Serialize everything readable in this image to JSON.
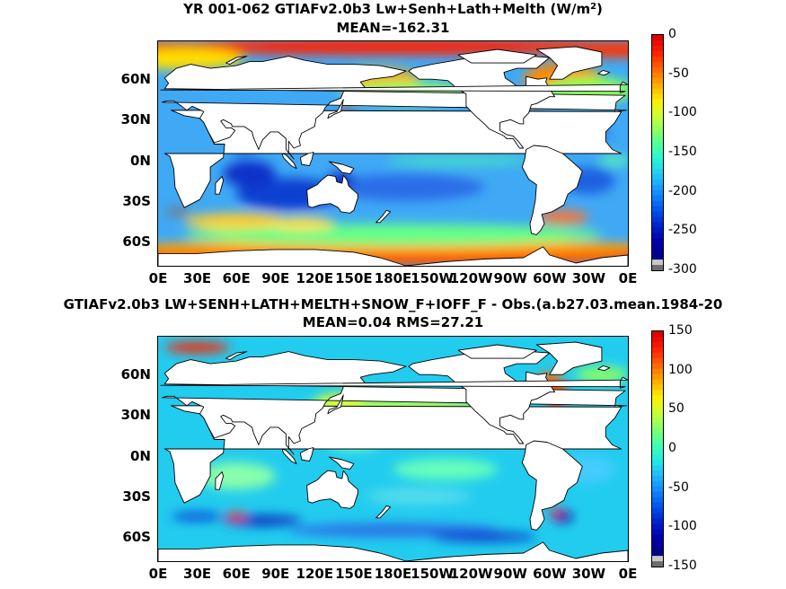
{
  "map1": {
    "title_prefix": "YR 001-062 GTIAFv2.0b3 Lw+Senh+Lath+Melth (W/m",
    "title_sup": "2",
    "title_suffix": ")",
    "subtitle": "MEAN=-162.31",
    "lat_labels": [
      "60N",
      "30N",
      "0N",
      "30S",
      "60S"
    ],
    "lon_labels": [
      "0E",
      "30E",
      "60E",
      "90E",
      "120E",
      "150E",
      "180E",
      "150W",
      "120W",
      "90W",
      "60W",
      "30W",
      "0E"
    ],
    "colorbar_ticks": [
      "0",
      "-50",
      "-100",
      "-150",
      "-200",
      "-250",
      "-300"
    ],
    "colorbar_range": [
      -300,
      0
    ]
  },
  "map2": {
    "title": "GTIAFv2.0b3 LW+SENH+LATH+MELTH+SNOW_F+IOFF_F - Obs.(a.b27.03.mean.1984-20",
    "subtitle": "MEAN=0.04 RMS=27.21",
    "lat_labels": [
      "60N",
      "30N",
      "0N",
      "30S",
      "60S"
    ],
    "lon_labels": [
      "0E",
      "30E",
      "60E",
      "90E",
      "120E",
      "150E",
      "180E",
      "150W",
      "120W",
      "90W",
      "60W",
      "30W",
      "0E"
    ],
    "colorbar_ticks": [
      "150",
      "100",
      "50",
      "0",
      "-50",
      "-100",
      "-150"
    ],
    "colorbar_range": [
      -150,
      150
    ]
  },
  "colors": {
    "land": "#ffffff",
    "jet": [
      "#7f0000",
      "#ff0000",
      "#ff7f00",
      "#ffff00",
      "#7fff7f",
      "#00ffff",
      "#007fff",
      "#0000ff",
      "#00007f"
    ],
    "gray_dark": "#6e6e6e",
    "gray_light": "#c8c8c8"
  }
}
